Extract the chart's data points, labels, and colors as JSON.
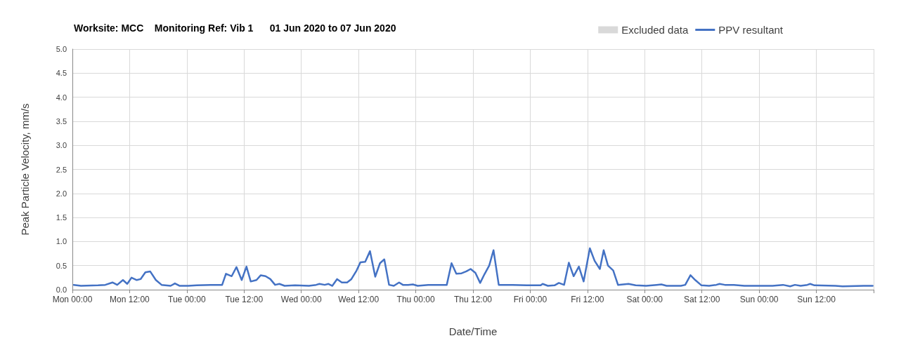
{
  "chart_data": {
    "type": "line",
    "title": "Worksite: MCC    Monitoring Ref: Vib 1      01 Jun 2020 to 07 Jun 2020",
    "xlabel": "Date/Time",
    "ylabel": "Peak Particle Velocity, mm/s",
    "xlim": [
      "2020-06-01T00:00",
      "2020-06-08T00:00"
    ],
    "xticks": [
      {
        "value": "2020-06-01T00:00",
        "label": "Mon 00:00"
      },
      {
        "value": "2020-06-01T12:00",
        "label": "Mon 12:00"
      },
      {
        "value": "2020-06-02T00:00",
        "label": "Tue 00:00"
      },
      {
        "value": "2020-06-02T12:00",
        "label": "Tue 12:00"
      },
      {
        "value": "2020-06-03T00:00",
        "label": "Wed 00:00"
      },
      {
        "value": "2020-06-03T12:00",
        "label": "Wed 12:00"
      },
      {
        "value": "2020-06-04T00:00",
        "label": "Thu 00:00"
      },
      {
        "value": "2020-06-04T12:00",
        "label": "Thu 12:00"
      },
      {
        "value": "2020-06-05T00:00",
        "label": "Fri 00:00"
      },
      {
        "value": "2020-06-05T12:00",
        "label": "Fri 12:00"
      },
      {
        "value": "2020-06-06T00:00",
        "label": "Sat 00:00"
      },
      {
        "value": "2020-06-06T12:00",
        "label": "Sat 12:00"
      },
      {
        "value": "2020-06-07T00:00",
        "label": "Sun 00:00"
      },
      {
        "value": "2020-06-07T12:00",
        "label": "Sun 12:00"
      },
      {
        "value": "2020-06-08T00:00",
        "label": null
      }
    ],
    "ylim": [
      0,
      5
    ],
    "yticks": [
      {
        "value": 0,
        "label": "0.0"
      },
      {
        "value": 0.5,
        "label": "0.5"
      },
      {
        "value": 1,
        "label": "1.0"
      },
      {
        "value": 1.5,
        "label": "1.5"
      },
      {
        "value": 2,
        "label": "2.0"
      },
      {
        "value": 2.5,
        "label": "2.5"
      },
      {
        "value": 3,
        "label": "3.0"
      },
      {
        "value": 3.5,
        "label": "3.5"
      },
      {
        "value": 4,
        "label": "4.0"
      },
      {
        "value": 4.5,
        "label": "4.5"
      },
      {
        "value": 5,
        "label": "5.0"
      }
    ],
    "grid": true,
    "legend": "top right",
    "marker": "none",
    "line_style": "solid",
    "series": [
      {
        "name": "Excluded data",
        "type": "bar",
        "color": "#d9d9d9"
      },
      {
        "name": "PPV resultant",
        "color": "#4472c4",
        "x": [
          "2020-06-01T00:18",
          "2020-06-01T01:48",
          "2020-06-01T05:24",
          "2020-06-01T06:54",
          "2020-06-01T08:24",
          "2020-06-01T09:24",
          "2020-06-01T10:36",
          "2020-06-01T11:30",
          "2020-06-01T12:24",
          "2020-06-01T13:30",
          "2020-06-01T14:18",
          "2020-06-01T15:18",
          "2020-06-01T16:18",
          "2020-06-01T17:30",
          "2020-06-01T18:42",
          "2020-06-01T20:36",
          "2020-06-01T21:30",
          "2020-06-01T22:30",
          "2020-06-02T00:18",
          "2020-06-02T02:06",
          "2020-06-02T05:00",
          "2020-06-02T07:24",
          "2020-06-02T08:12",
          "2020-06-02T09:24",
          "2020-06-02T10:24",
          "2020-06-02T11:30",
          "2020-06-02T12:30",
          "2020-06-02T13:24",
          "2020-06-02T14:36",
          "2020-06-02T15:30",
          "2020-06-02T16:30",
          "2020-06-02T17:30",
          "2020-06-02T18:30",
          "2020-06-02T19:24",
          "2020-06-02T20:30",
          "2020-06-02T22:42",
          "2020-06-03T01:36",
          "2020-06-03T03:06",
          "2020-06-03T03:48",
          "2020-06-03T04:54",
          "2020-06-03T05:42",
          "2020-06-03T06:30",
          "2020-06-03T07:30",
          "2020-06-03T08:30",
          "2020-06-03T09:36",
          "2020-06-03T10:30",
          "2020-06-03T11:36",
          "2020-06-03T12:24",
          "2020-06-03T13:24",
          "2020-06-03T14:24",
          "2020-06-03T15:30",
          "2020-06-03T16:30",
          "2020-06-03T17:24",
          "2020-06-03T18:24",
          "2020-06-03T19:24",
          "2020-06-03T20:30",
          "2020-06-03T21:18",
          "2020-06-03T22:24",
          "2020-06-03T23:24",
          "2020-06-04T00:24",
          "2020-06-04T02:36",
          "2020-06-04T06:30",
          "2020-06-04T07:30",
          "2020-06-04T08:30",
          "2020-06-04T09:36",
          "2020-06-04T10:36",
          "2020-06-04T11:30",
          "2020-06-04T12:30",
          "2020-06-04T13:30",
          "2020-06-04T14:24",
          "2020-06-04T15:24",
          "2020-06-04T16:18",
          "2020-06-04T17:24",
          "2020-06-04T20:18",
          "2020-06-04T23:18",
          "2020-06-05T02:12",
          "2020-06-05T02:36",
          "2020-06-05T03:42",
          "2020-06-05T05:06",
          "2020-06-05T06:00",
          "2020-06-05T07:06",
          "2020-06-05T08:06",
          "2020-06-05T09:06",
          "2020-06-05T10:12",
          "2020-06-05T11:12",
          "2020-06-05T12:30",
          "2020-06-05T13:30",
          "2020-06-05T14:36",
          "2020-06-05T15:24",
          "2020-06-05T16:18",
          "2020-06-05T17:24",
          "2020-06-05T18:24",
          "2020-06-05T20:36",
          "2020-06-05T22:06",
          "2020-06-06T00:18",
          "2020-06-06T02:30",
          "2020-06-06T03:30",
          "2020-06-06T04:36",
          "2020-06-06T07:36",
          "2020-06-06T08:30",
          "2020-06-06T09:36",
          "2020-06-06T10:36",
          "2020-06-06T11:54",
          "2020-06-06T13:30",
          "2020-06-06T15:00",
          "2020-06-06T15:42",
          "2020-06-06T16:48",
          "2020-06-06T18:42",
          "2020-06-06T20:54",
          "2020-06-07T01:18",
          "2020-06-07T02:48",
          "2020-06-07T05:00",
          "2020-06-07T06:30",
          "2020-06-07T07:30",
          "2020-06-07T08:42",
          "2020-06-07T10:06",
          "2020-06-07T10:42",
          "2020-06-07T11:36",
          "2020-06-07T16:00",
          "2020-06-07T17:30",
          "2020-06-07T21:54",
          "2020-06-07T23:48"
        ],
        "values": [
          0.1,
          0.08,
          0.09,
          0.1,
          0.15,
          0.1,
          0.2,
          0.12,
          0.25,
          0.2,
          0.22,
          0.36,
          0.38,
          0.2,
          0.1,
          0.08,
          0.13,
          0.08,
          0.08,
          0.09,
          0.1,
          0.1,
          0.33,
          0.28,
          0.47,
          0.2,
          0.48,
          0.17,
          0.2,
          0.3,
          0.28,
          0.22,
          0.1,
          0.12,
          0.08,
          0.09,
          0.08,
          0.1,
          0.12,
          0.1,
          0.12,
          0.08,
          0.22,
          0.15,
          0.15,
          0.22,
          0.4,
          0.57,
          0.58,
          0.8,
          0.27,
          0.55,
          0.63,
          0.1,
          0.08,
          0.15,
          0.1,
          0.1,
          0.11,
          0.08,
          0.1,
          0.1,
          0.55,
          0.33,
          0.34,
          0.38,
          0.43,
          0.35,
          0.14,
          0.32,
          0.5,
          0.82,
          0.1,
          0.1,
          0.09,
          0.09,
          0.12,
          0.08,
          0.09,
          0.14,
          0.1,
          0.56,
          0.28,
          0.48,
          0.17,
          0.86,
          0.6,
          0.43,
          0.82,
          0.5,
          0.4,
          0.1,
          0.12,
          0.09,
          0.08,
          0.1,
          0.11,
          0.08,
          0.08,
          0.1,
          0.3,
          0.2,
          0.09,
          0.08,
          0.1,
          0.12,
          0.1,
          0.1,
          0.08,
          0.08,
          0.08,
          0.1,
          0.07,
          0.1,
          0.08,
          0.1,
          0.12,
          0.09,
          0.08,
          0.07,
          0.08,
          0.08
        ]
      }
    ]
  }
}
